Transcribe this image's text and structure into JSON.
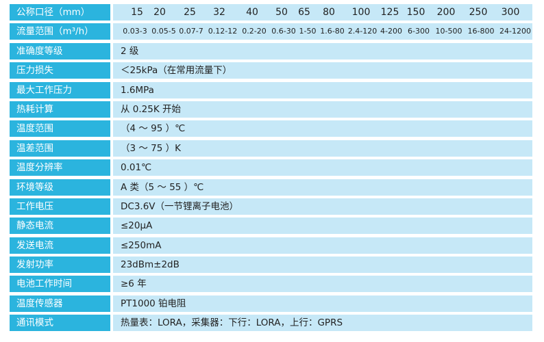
{
  "rows": [
    {
      "label": "公称口径（mm）"
    },
    {
      "label": "流量范围（m³/h）"
    },
    {
      "label": "准确度等级",
      "value": "2 级"
    },
    {
      "label": "压力损失",
      "value": "＜25kPa（在常用流量下）"
    },
    {
      "label": "最大工作压力",
      "value": "1.6MPa"
    },
    {
      "label": "热耗计算",
      "value": "从 0.25K 开始"
    },
    {
      "label": "温度范围",
      "value": "（4 ～ 95 ）℃"
    },
    {
      "label": "温差范围",
      "value": "（3 ～ 75 ）K"
    },
    {
      "label": "温度分辨率",
      "value": "0.01℃"
    },
    {
      "label": "环境等级",
      "value": "A 类（5 ～ 55 ）℃"
    },
    {
      "label": "工作电压",
      "value": "DC3.6V（一节锂离子电池）"
    },
    {
      "label": "静态电流",
      "value": "≤20μA"
    },
    {
      "label": "发送电流",
      "value": "≤250mA"
    },
    {
      "label": "发射功率",
      "value": "23dBm±2dB"
    },
    {
      "label": "电池工作时间",
      "value": "≥6 年"
    },
    {
      "label": "温度传感器",
      "value": "PT1000 铂电阻"
    },
    {
      "label": "通讯模式",
      "value": "热量表：LORA，采集器：下行：LORA，上行：GPRS"
    }
  ],
  "nominal_diameters": [
    "15",
    "20",
    "25",
    "32",
    "40",
    "50",
    "65",
    "80",
    "100",
    "125",
    "150",
    "200",
    "250",
    "300"
  ],
  "flow_ranges": [
    "0.03-3",
    "0.05-5",
    "0.07-7",
    "0.12-12",
    "0.2-20",
    "0.6-30",
    "1-50",
    "1.6-80",
    "2.4-120",
    "4-200",
    "6-300",
    "10-500",
    "16-800",
    "24-1200"
  ],
  "colors": {
    "label_bg": "#2bb4de",
    "value_bg": "#c6e8f7",
    "label_text": "#ffffff"
  }
}
